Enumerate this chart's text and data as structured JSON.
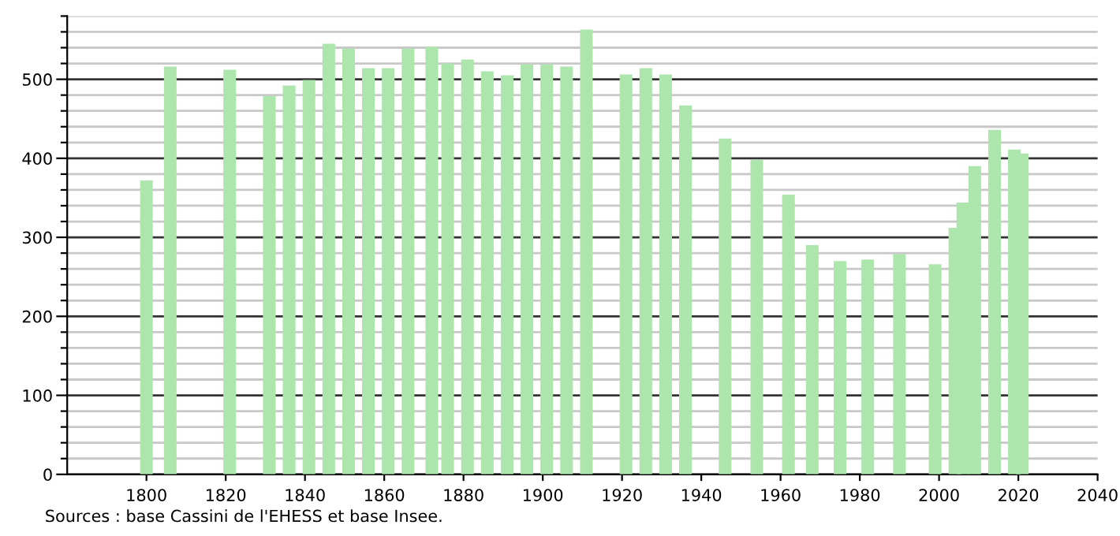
{
  "chart_data": {
    "type": "bar",
    "x": [
      1800,
      1806,
      1821,
      1831,
      1836,
      1841,
      1846,
      1851,
      1856,
      1861,
      1866,
      1872,
      1876,
      1881,
      1886,
      1891,
      1896,
      1901,
      1906,
      1911,
      1921,
      1926,
      1931,
      1936,
      1946,
      1954,
      1962,
      1968,
      1975,
      1982,
      1990,
      1999,
      2004,
      2006,
      2009,
      2014,
      2019,
      2021
    ],
    "values": [
      372,
      516,
      512,
      479,
      492,
      499,
      545,
      539,
      514,
      514,
      539,
      541,
      520,
      525,
      510,
      505,
      519,
      519,
      516,
      563,
      506,
      514,
      506,
      467,
      425,
      398,
      354,
      290,
      270,
      272,
      279,
      266,
      312,
      344,
      390,
      436,
      411,
      406
    ],
    "color": "#ade6ad",
    "xlim": [
      1780,
      2040
    ],
    "xticks": [
      1800,
      1820,
      1840,
      1860,
      1880,
      1900,
      1920,
      1940,
      1960,
      1980,
      2000,
      2020,
      2040
    ],
    "ylim": [
      0,
      580
    ],
    "yticks": [
      0,
      {
        "value": 20,
        "label": null
      },
      {
        "value": 40,
        "label": null
      },
      {
        "value": 60,
        "label": null
      },
      {
        "value": 80,
        "label": null
      },
      100,
      {
        "value": 120,
        "label": null
      },
      {
        "value": 140,
        "label": null
      },
      {
        "value": 160,
        "label": null
      },
      {
        "value": 180,
        "label": null
      },
      200,
      {
        "value": 220,
        "label": null
      },
      {
        "value": 240,
        "label": null
      },
      {
        "value": 260,
        "label": null
      },
      {
        "value": 280,
        "label": null
      },
      300,
      {
        "value": 320,
        "label": null
      },
      {
        "value": 340,
        "label": null
      },
      {
        "value": 360,
        "label": null
      },
      {
        "value": 380,
        "label": null
      },
      400,
      {
        "value": 420,
        "label": null
      },
      {
        "value": 440,
        "label": null
      },
      {
        "value": 460,
        "label": null
      },
      {
        "value": 480,
        "label": null
      },
      500,
      {
        "value": 520,
        "label": null
      },
      {
        "value": 540,
        "label": null
      },
      {
        "value": 560,
        "label": null
      },
      {
        "value": 580,
        "label": null
      }
    ],
    "grid": "y",
    "annotations": [
      "Sources : base Cassini de l'EHESS et base Insee."
    ]
  }
}
